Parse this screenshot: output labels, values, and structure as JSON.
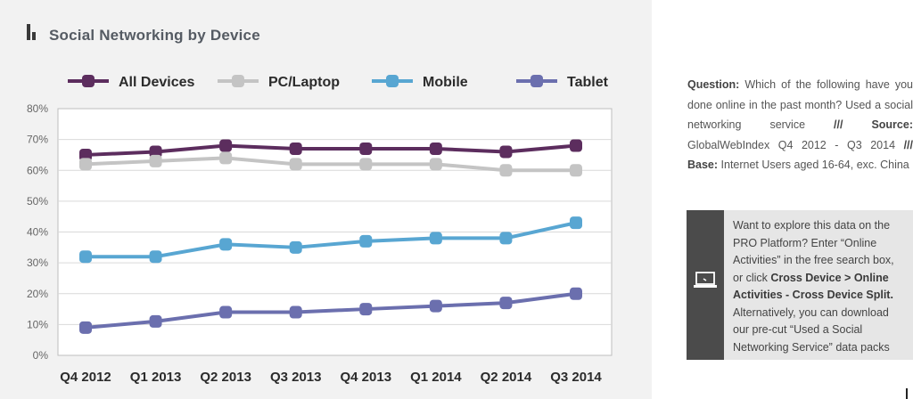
{
  "title": "Social Networking by Device",
  "question_block": {
    "question_label": "Question:",
    "question_text": " Which of the following have you done online in the past month? Used a social networking service ",
    "sep1": "///",
    "source_label": " Source:",
    "source_text": " GlobalWebIndex Q4 2012 - Q3 2014 ",
    "sep2": "///",
    "base_label": " Base:",
    "base_text": " Internet Users aged 16-64, exc. China"
  },
  "cta": {
    "text1": "Want to explore this data on the PRO Platform? Enter “Online Activities” in the free search box, or click ",
    "bold1": "Cross Device > Online Activities - Cross Device Split.",
    "text2": " Alternatively, you can download our pre-cut “Used a Social Networking Service” data packs",
    "icon": "laptop-icon",
    "side_color": "#4b4b4b"
  },
  "chart_data": {
    "type": "line",
    "title": "Social Networking by Device",
    "categories": [
      "Q4 2012",
      "Q1 2013",
      "Q2 2013",
      "Q3 2013",
      "Q4 2013",
      "Q1 2014",
      "Q2 2014",
      "Q3 2014"
    ],
    "y_ticks": [
      "0%",
      "10%",
      "20%",
      "30%",
      "40%",
      "50%",
      "60%",
      "70%",
      "80%"
    ],
    "ylim": [
      0,
      80
    ],
    "grid": true,
    "legend_position": "top",
    "series": [
      {
        "name": "All Devices",
        "color": "#5c2d5e",
        "values": [
          65,
          66,
          68,
          67,
          67,
          67,
          66,
          68
        ]
      },
      {
        "name": "PC/Laptop",
        "color": "#c4c4c4",
        "values": [
          62,
          63,
          64,
          62,
          62,
          62,
          60,
          60
        ]
      },
      {
        "name": "Mobile",
        "color": "#58a6d2",
        "values": [
          32,
          32,
          36,
          35,
          37,
          38,
          38,
          43
        ]
      },
      {
        "name": "Tablet",
        "color": "#6b6fae",
        "values": [
          9,
          11,
          14,
          14,
          15,
          16,
          17,
          20
        ]
      }
    ]
  }
}
